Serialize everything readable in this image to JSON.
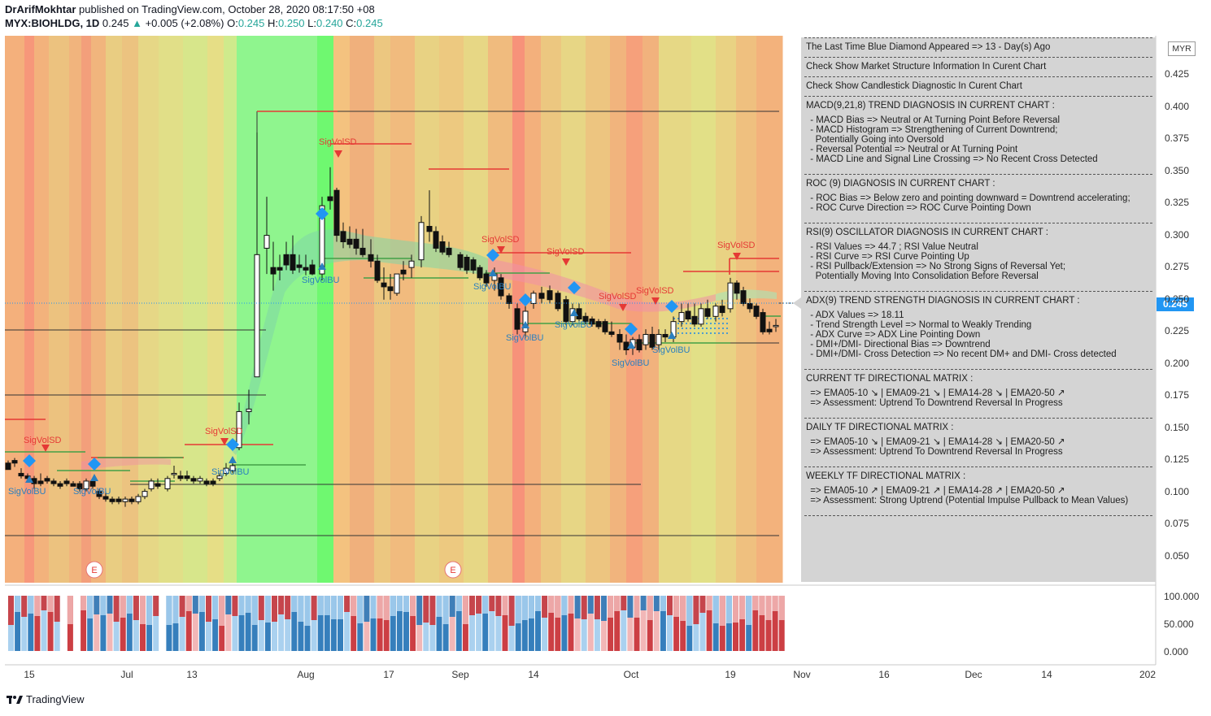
{
  "header": {
    "author": "DrArifMokhtar",
    "published": "published on TradingView.com, October 28, 2020 08:17:50 +08",
    "symbol": "MYX:BIOHLDG, 1D",
    "last": "0.245",
    "change": "+0.005 (+2.08%)",
    "o_label": "O:",
    "o_val": "0.245",
    "h_label": "H:",
    "h_val": "0.250",
    "l_label": "L:",
    "l_val": "0.240",
    "c_label": "C:",
    "c_val": "0.245"
  },
  "currency": "MYR",
  "current_price": "0.245",
  "price_axis": [
    "0.425",
    "0.400",
    "0.375",
    "0.350",
    "0.325",
    "0.300",
    "0.275",
    "0.250",
    "0.225",
    "0.200",
    "0.175",
    "0.150",
    "0.125",
    "0.100",
    "0.075",
    "0.050"
  ],
  "volume_axis": [
    "100.000",
    "50.000",
    "0.000"
  ],
  "time_axis": [
    "15",
    "Jul",
    "13",
    "Aug",
    "17",
    "Sep",
    "14",
    "Oct",
    "19",
    "Nov",
    "16",
    "Dec",
    "14",
    "202"
  ],
  "labels": {
    "sigvolsd": "SigVolSD",
    "sigvolbu": "SigVolBU",
    "earnings": "E"
  },
  "info_panel": [
    {
      "type": "head",
      "text": "The Last Time Blue Diamond Appeared => 13 - Day(s) Ago"
    },
    {
      "type": "head",
      "text": "Check Show Market Structure Information In Curent Chart"
    },
    {
      "type": "head",
      "text": "Check Show Candlestick Diagnostic In Curent Chart"
    },
    {
      "type": "head",
      "text": "MACD(9,21,8) TREND DIAGNOSIS IN CURRENT CHART :"
    },
    {
      "type": "sub",
      "text": " - MACD Bias => Neutral or At Turning Point Before Reversal\n - MACD Histogram => Strengthening of Current Downtrend;\n   Potentially Going into Oversold\n - Reversal Potential => Neutral or At Turning Point\n - MACD Line and Signal Line Crossing => No Recent Cross Detected"
    },
    {
      "type": "head",
      "text": "ROC (9) DIAGNOSIS IN CURRENT CHART :"
    },
    {
      "type": "sub",
      "text": " - ROC Bias => Below zero and pointing downward = Downtrend accelerating;\n - ROC Curve Direction => ROC Curve Pointing Down"
    },
    {
      "type": "head",
      "text": "RSI(9) OSCILLATOR DIAGNOSIS IN CURRENT CHART :"
    },
    {
      "type": "sub",
      "text": " - RSI Values => 44.7 ; RSI Value Neutral\n - RSI Curve => RSI Curve Pointing Up\n - RSI Pullback/Extension => No Strong Signs of Reversal Yet;\n   Potentially Moving Into Consolidation Before Reversal"
    },
    {
      "type": "head",
      "text": "ADX(9) TREND STRENGTH DIAGNOSIS IN CURRENT CHART :"
    },
    {
      "type": "sub",
      "text": " - ADX Values => 18.11\n - Trend Strength Level => Normal to Weakly Trending\n - ADX Curve => ADX Line Pointing Down\n - DMI+/DMI- Directional Bias => Downtrend\n - DMI+/DMI- Cross Detection => No recent DM+ and DMI- Cross detected"
    },
    {
      "type": "head",
      "text": "CURRENT TF DIRECTIONAL MATRIX :"
    },
    {
      "type": "sub",
      "text": " => EMA05-10 ↘ | EMA09-21 ↘ | EMA14-28 ↘ | EMA20-50 ↗\n => Assessment: Uptrend To Downtrend Reversal In Progress"
    },
    {
      "type": "head",
      "text": "DAILY TF DIRECTIONAL MATRIX :"
    },
    {
      "type": "sub",
      "text": " => EMA05-10 ↘ | EMA09-21 ↘ | EMA14-28 ↘ | EMA20-50 ↗\n => Assessment: Uptrend To Downtrend Reversal In Progress"
    },
    {
      "type": "head",
      "text": "WEEKLY TF DIRECTIONAL MATRIX :"
    },
    {
      "type": "sub",
      "text": " => EMA05-10 ↗ | EMA09-21 ↗ | EMA14-28 ↗ | EMA20-50 ↗\n => Assessment: Strong Uptrend (Potential Impulse Pullback to Mean Values)"
    }
  ],
  "colors": {
    "up": "#26a69a",
    "bu_label": "#2a7fbf",
    "sd_label": "#e53935",
    "diamond": "#2196f3",
    "vol_dark_blue": "#2b78b8",
    "vol_light_blue": "#a5cfee",
    "vol_dark_red": "#c9353a",
    "vol_pink": "#f1b3b3"
  },
  "footer": {
    "brand": "TradingView"
  }
}
